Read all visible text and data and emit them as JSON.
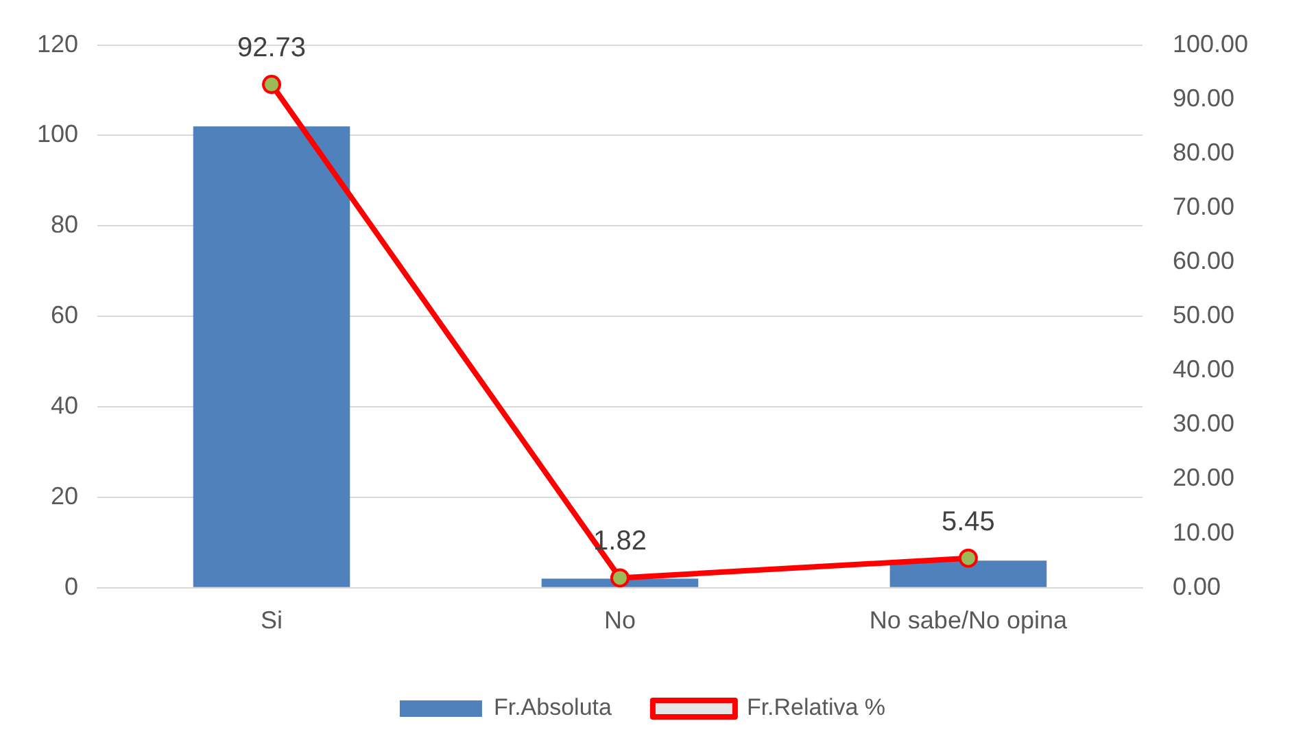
{
  "chart_data": {
    "type": "bar",
    "categories": [
      "Si",
      "No",
      "No sabe/No opina"
    ],
    "series": [
      {
        "name": "Fr.Absoluta",
        "color": "#4f81bd",
        "values": [
          102,
          2,
          6
        ]
      },
      {
        "name": "Fr.Relativa %",
        "type": "line",
        "axis": "y2",
        "color": "#ff0000",
        "values": [
          92.73,
          1.82,
          5.45
        ],
        "value_labels": [
          "92.73",
          "1.82",
          "5.45"
        ]
      }
    ],
    "ylim": [
      0,
      120
    ],
    "yticks": [
      0,
      20,
      40,
      60,
      80,
      100,
      120
    ],
    "y2lim": [
      0,
      100
    ],
    "y2ticks": [
      {
        "value": 0,
        "label": "0.00"
      },
      {
        "value": 10,
        "label": "10.00"
      },
      {
        "value": 20,
        "label": "20.00"
      },
      {
        "value": 30,
        "label": "30.00"
      },
      {
        "value": 40,
        "label": "40.00"
      },
      {
        "value": 50,
        "label": "50.00"
      },
      {
        "value": 60,
        "label": "60.00"
      },
      {
        "value": 70,
        "label": "70.00"
      },
      {
        "value": 80,
        "label": "80.00"
      },
      {
        "value": 90,
        "label": "90.00"
      },
      {
        "value": 100,
        "label": "100.00"
      }
    ],
    "grid": "y",
    "legend": "bottom",
    "marker": "circle",
    "line_style": "solid"
  }
}
